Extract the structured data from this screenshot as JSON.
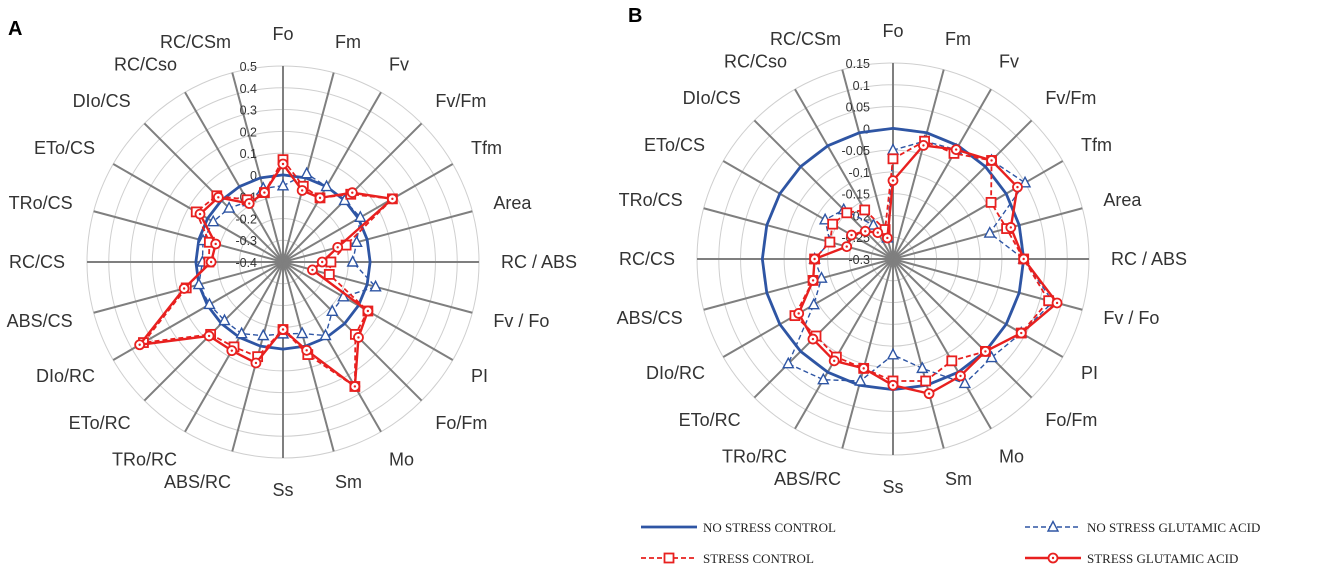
{
  "colors": {
    "no_stress_control": "#2e55a4",
    "no_stress_glutamic": "#2e55a4",
    "stress_control": "#e8201f",
    "stress_glutamic": "#e8201f",
    "grid": "#cfcfcf",
    "spoke": "#7f7f7f"
  },
  "legend": [
    {
      "label": "NO STRESS CONTROL",
      "style": "solid",
      "marker": "none",
      "color": "#2e55a4"
    },
    {
      "label": "NO STRESS GLUTAMIC ACID",
      "style": "dashed",
      "marker": "triangle",
      "color": "#2e55a4"
    },
    {
      "label": "STRESS CONTROL",
      "style": "dashed",
      "marker": "square",
      "color": "#e8201f"
    },
    {
      "label": "STRESS GLUTAMIC ACID",
      "style": "solid",
      "marker": "circle",
      "color": "#e8201f"
    }
  ],
  "chart_data": [
    {
      "type": "radar",
      "panel": "A",
      "axes": [
        "Fo",
        "Fm",
        "Fv",
        "Fv/Fm",
        "Tfm",
        "Area",
        "RC / ABS",
        "Fv / Fo",
        "PI",
        "Fo/Fm",
        "Mo",
        "Sm",
        "Ss",
        "ABS/RC",
        "TRo/RC",
        "ETo/RC",
        "DIo/RC",
        "ABS/CS",
        "RC/CS",
        "TRo/CS",
        "ETo/CS",
        "DIo/CS",
        "RC/Cso",
        "RC/CSm"
      ],
      "rlim": [
        -0.4,
        0.5
      ],
      "ticks": [
        "0.5",
        "0.4",
        "0.3",
        "0.2",
        "0.1",
        "0",
        "-0.1",
        "-0.2",
        "-0.3",
        "-0.4"
      ],
      "series": [
        {
          "name": "NO STRESS CONTROL",
          "values": [
            0,
            0,
            0,
            0,
            0,
            0,
            0,
            0,
            0,
            0,
            0,
            0,
            0,
            0,
            0,
            0,
            0,
            0,
            0,
            0,
            0,
            0,
            0,
            0
          ]
        },
        {
          "name": "NO STRESS GLUTAMIC ACID",
          "values": [
            -0.05,
            0.02,
            0,
            0,
            0.01,
            -0.05,
            -0.08,
            0.04,
            -0.08,
            -0.08,
            -0.01,
            -0.06,
            -0.07,
            -0.05,
            -0.02,
            -0.02,
            -0.01,
            0,
            -0.03,
            -0.02,
            -0.03,
            -0.05,
            -0.08,
            -0.05
          ]
        },
        {
          "name": "STRESS CONTROL",
          "values": [
            0.07,
            -0.04,
            -0.06,
            0.04,
            0.18,
            -0.1,
            -0.18,
            -0.18,
            0.05,
            0.07,
            0.26,
            0.04,
            -0.09,
            0.05,
            0.05,
            0.07,
            0.34,
            0.06,
            -0.06,
            -0.05,
            0.06,
            0.03,
            -0.07,
            -0.07
          ]
        },
        {
          "name": "STRESS GLUTAMIC ACID",
          "values": [
            0.05,
            -0.06,
            -0.06,
            0.05,
            0.18,
            -0.14,
            -0.22,
            -0.26,
            0.05,
            0.09,
            0.26,
            0.02,
            -0.09,
            0.08,
            0.07,
            0.08,
            0.36,
            0.07,
            -0.07,
            -0.08,
            0.04,
            0.02,
            -0.09,
            -0.07
          ]
        }
      ]
    },
    {
      "type": "radar",
      "panel": "B",
      "axes": [
        "Fo",
        "Fm",
        "Fv",
        "Fv/Fm",
        "Tfm",
        "Area",
        "RC / ABS",
        "Fv / Fo",
        "PI",
        "Fo/Fm",
        "Mo",
        "Sm",
        "Ss",
        "ABS/RC",
        "TRo/RC",
        "ETo/RC",
        "DIo/RC",
        "ABS/CS",
        "RC/CS",
        "TRo/CS",
        "ETo/CS",
        "DIo/CS",
        "RC/Cso",
        "RC/CSm"
      ],
      "rlim": [
        -0.3,
        0.15
      ],
      "ticks": [
        "0.15",
        "0.1",
        "0.05",
        "0",
        "-0.05",
        "-0.1",
        "-0.15",
        "-0.2",
        "-0.25",
        "-0.3"
      ],
      "series": [
        {
          "name": "NO STRESS CONTROL",
          "values": [
            0,
            0,
            0,
            0,
            0,
            0,
            0,
            0,
            0,
            0,
            0,
            0,
            0,
            0,
            0,
            0,
            0,
            0,
            0,
            0,
            0,
            0,
            0,
            0
          ]
        },
        {
          "name": "NO STRESS GLUTAMIC ACID",
          "values": [
            -0.05,
            -0.02,
            -0.01,
            0.02,
            0.05,
            -0.07,
            0,
            0.08,
            0.04,
            0.02,
            0.03,
            -0.04,
            -0.08,
            -0.01,
            0.02,
            0.04,
            -0.09,
            -0.13,
            -0.12,
            -0.15,
            -0.12,
            -0.14,
            -0.21,
            -0.25
          ]
        },
        {
          "name": "STRESS CONTROL",
          "values": [
            -0.07,
            -0.02,
            -0.02,
            0.02,
            -0.04,
            -0.03,
            0,
            0.07,
            0.04,
            0,
            -0.03,
            -0.01,
            -0.02,
            -0.04,
            -0.04,
            -0.05,
            -0.04,
            -0.11,
            -0.12,
            -0.15,
            -0.14,
            -0.15,
            -0.17,
            -0.23
          ]
        },
        {
          "name": "STRESS GLUTAMIC ACID",
          "values": [
            -0.12,
            -0.03,
            -0.01,
            0.02,
            0.03,
            -0.02,
            0,
            0.09,
            0.04,
            0,
            0.01,
            0.02,
            -0.01,
            -0.04,
            -0.03,
            -0.04,
            -0.05,
            -0.11,
            -0.12,
            -0.19,
            -0.19,
            -0.21,
            -0.23,
            -0.25
          ]
        }
      ]
    }
  ]
}
